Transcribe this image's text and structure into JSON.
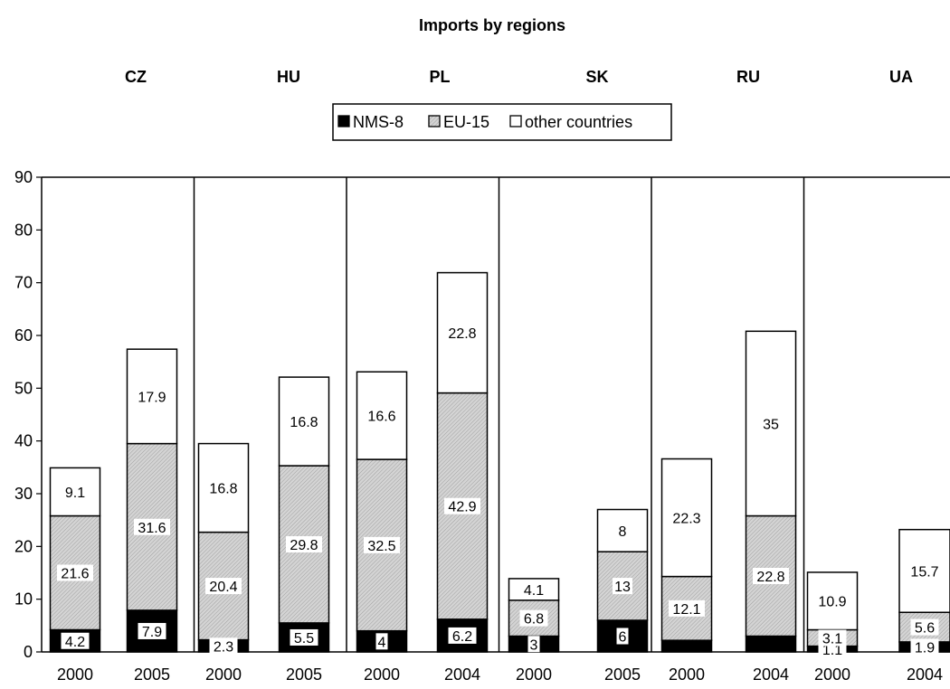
{
  "chart_data": {
    "type": "bar",
    "stacked": true,
    "title": "Imports by regions",
    "xlabel": "",
    "ylabel": "",
    "ylim": [
      0,
      90
    ],
    "yticks": [
      0,
      10,
      20,
      30,
      40,
      50,
      60,
      70,
      80,
      90
    ],
    "grid": false,
    "legend_position": "top-center",
    "groups": [
      {
        "name": "CZ",
        "years": [
          "2000",
          "2005"
        ]
      },
      {
        "name": "HU",
        "years": [
          "2000",
          "2005"
        ]
      },
      {
        "name": "PL",
        "years": [
          "2000",
          "2004"
        ]
      },
      {
        "name": "SK",
        "years": [
          "2000",
          "2005"
        ]
      },
      {
        "name": "RU",
        "years": [
          "2000",
          "2004"
        ]
      },
      {
        "name": "UA",
        "years": [
          "2000",
          "2004"
        ]
      }
    ],
    "categories": [
      "2000",
      "2005",
      "2000",
      "2005",
      "2000",
      "2004",
      "2000",
      "2005",
      "2000",
      "2004",
      "2000",
      "2004"
    ],
    "series": [
      {
        "name": "NMS-8",
        "color": "#000000",
        "values": [
          4.2,
          7.9,
          2.3,
          5.5,
          4,
          6.2,
          3,
          6,
          2.2,
          3,
          1.1,
          1.9
        ],
        "labels": [
          "4.2",
          "7.9",
          "2.3",
          "5.5",
          "4",
          "6.2",
          "3",
          "6",
          "",
          "",
          "1.1",
          "1.9"
        ]
      },
      {
        "name": "EU-15",
        "color": "#c8c8c8",
        "values": [
          21.6,
          31.6,
          20.4,
          29.8,
          32.5,
          42.9,
          6.8,
          13,
          12.1,
          22.8,
          3.1,
          5.6
        ],
        "labels": [
          "21.6",
          "31.6",
          "20.4",
          "29.8",
          "32.5",
          "42.9",
          "6.8",
          "13",
          "12.1",
          "22.8",
          "3.1",
          "5.6"
        ]
      },
      {
        "name": "other countries",
        "color": "#ffffff",
        "values": [
          9.1,
          17.9,
          16.8,
          16.8,
          16.6,
          22.8,
          4.1,
          8,
          22.3,
          35,
          10.9,
          15.7
        ],
        "labels": [
          "9.1",
          "17.9",
          "16.8",
          "16.8",
          "16.6",
          "22.8",
          "4.1",
          "8",
          "22.3",
          "35",
          "10.9",
          "15.7"
        ]
      }
    ]
  }
}
